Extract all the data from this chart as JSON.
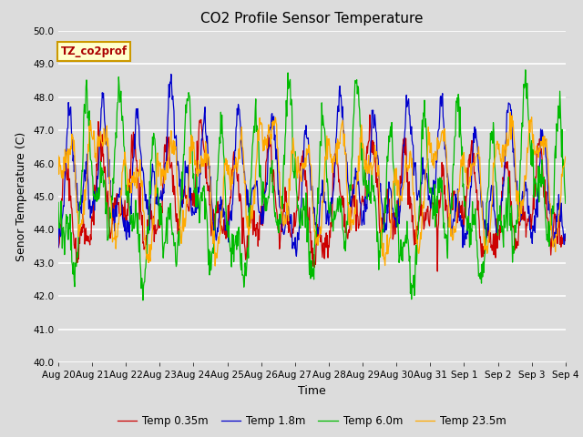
{
  "title": "CO2 Profile Sensor Temperature",
  "xlabel": "Time",
  "ylabel": "Senor Temperature (C)",
  "annotation": "TZ_co2prof",
  "ylim": [
    40.0,
    50.0
  ],
  "yticks": [
    40.0,
    41.0,
    42.0,
    43.0,
    44.0,
    45.0,
    46.0,
    47.0,
    48.0,
    49.0,
    50.0
  ],
  "xtick_labels": [
    "Aug 20",
    "Aug 21",
    "Aug 22",
    "Aug 23",
    "Aug 24",
    "Aug 25",
    "Aug 26",
    "Aug 27",
    "Aug 28",
    "Aug 29",
    "Aug 30",
    "Aug 31",
    "Sep 1",
    "Sep 2",
    "Sep 3",
    "Sep 4"
  ],
  "legend": [
    {
      "label": "Temp 0.35m",
      "color": "#cc0000"
    },
    {
      "label": "Temp 1.8m",
      "color": "#0000cc"
    },
    {
      "label": "Temp 6.0m",
      "color": "#00bb00"
    },
    {
      "label": "Temp 23.5m",
      "color": "#ffaa00"
    }
  ],
  "fig_bg_color": "#dcdcdc",
  "plot_bg_color": "#dcdcdc",
  "grid_color": "#ffffff",
  "title_fontsize": 11,
  "axis_label_fontsize": 9,
  "tick_fontsize": 7.5,
  "n_points": 900
}
